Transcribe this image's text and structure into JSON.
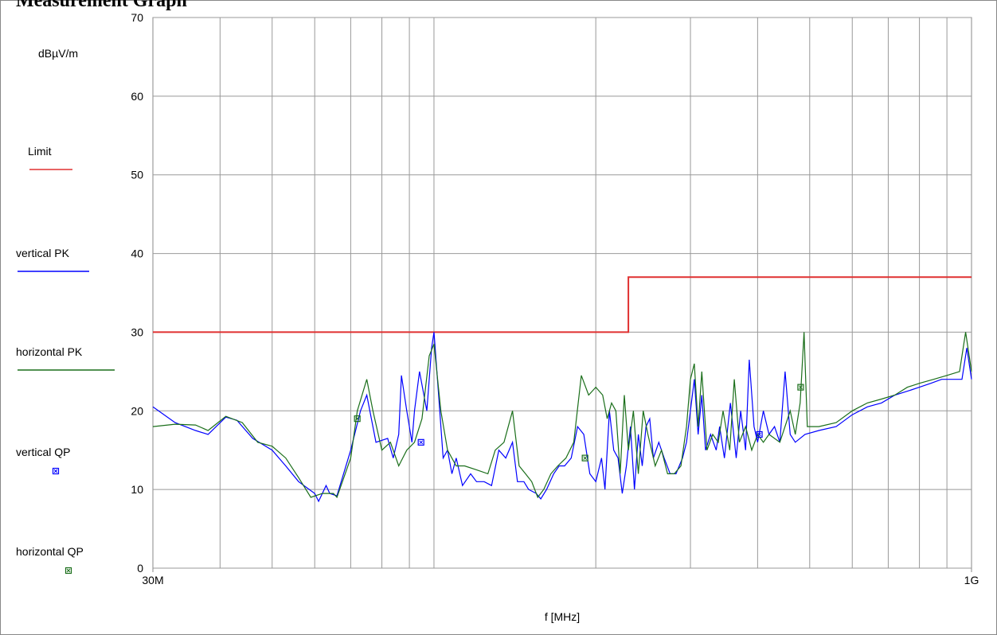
{
  "chart_data": {
    "type": "line",
    "title": "Measurement Graph",
    "ylabel": "dBµV/m",
    "xlabel": "f [MHz]",
    "xscale": "log",
    "xlim": [
      30,
      1000
    ],
    "ylim": [
      0,
      70
    ],
    "xticks": [
      {
        "value": 30,
        "label": "30M"
      },
      {
        "value": 1000,
        "label": "1G"
      }
    ],
    "xgrid": [
      40,
      50,
      60,
      70,
      80,
      90,
      100,
      200,
      300,
      400,
      500,
      600,
      700,
      800,
      900
    ],
    "yticks": [
      0,
      10,
      20,
      30,
      40,
      50,
      60,
      70
    ],
    "grid": true,
    "series": [
      {
        "name": "Limit",
        "color": "#e03030",
        "mark": "line",
        "x": [
          30,
          230,
          230,
          1000
        ],
        "values": [
          30,
          30,
          37,
          37
        ]
      },
      {
        "name": "vertical PK",
        "color": "#0000ff",
        "mark": "line",
        "x": [
          30,
          33,
          36,
          38,
          41,
          43,
          46,
          50,
          53,
          56,
          60,
          61,
          63,
          64,
          66,
          70,
          73,
          75,
          78,
          82,
          84,
          86,
          87,
          89,
          91,
          92,
          94,
          97,
          99,
          100,
          102,
          104,
          106,
          108,
          110,
          113,
          117,
          120,
          124,
          128,
          132,
          136,
          140,
          143,
          147,
          150,
          155,
          158,
          162,
          167,
          171,
          175,
          180,
          185,
          190,
          195,
          200,
          205,
          208,
          212,
          216,
          220,
          224,
          228,
          232,
          236,
          240,
          244,
          248,
          252,
          256,
          262,
          268,
          275,
          282,
          290,
          295,
          300,
          305,
          310,
          315,
          320,
          327,
          335,
          340,
          347,
          356,
          365,
          372,
          380,
          386,
          394,
          400,
          410,
          420,
          430,
          440,
          450,
          460,
          470,
          490,
          520,
          560,
          600,
          640,
          680,
          720,
          760,
          800,
          840,
          880,
          920,
          960,
          980,
          1000
        ],
        "values": [
          20.5,
          18.5,
          17.5,
          17,
          19.2,
          18.8,
          16.5,
          15,
          13,
          11,
          9.5,
          8.5,
          10.5,
          9.5,
          9.2,
          15,
          20,
          22,
          16,
          16.5,
          14,
          17,
          24.5,
          20,
          16,
          20,
          25,
          20,
          28,
          30,
          22,
          14,
          15,
          12,
          14,
          10.5,
          12,
          11,
          11,
          10.5,
          15,
          14,
          16,
          11,
          11,
          10,
          9.5,
          8.8,
          10,
          12,
          13,
          13,
          14,
          18,
          17,
          12,
          11,
          14,
          10,
          20,
          15,
          14,
          9.5,
          13,
          18,
          10,
          17,
          13,
          18,
          19,
          14,
          16,
          14,
          12,
          12,
          14,
          16,
          20,
          24,
          17,
          22,
          15,
          17,
          15,
          18,
          14,
          21,
          14,
          20,
          15,
          26.5,
          18,
          16,
          20,
          17,
          18,
          16,
          25,
          17,
          16,
          17,
          17.5,
          18,
          19.5,
          20.5,
          21,
          22,
          22.5,
          23,
          23.5,
          24,
          24,
          24,
          28,
          24
        ]
      },
      {
        "name": "horizontal PK",
        "color": "#1a6e1a",
        "mark": "line",
        "x": [
          30,
          33,
          36,
          38,
          41,
          44,
          47,
          50,
          53,
          56,
          59,
          62,
          65,
          66,
          70,
          72,
          75,
          77,
          80,
          83,
          86,
          89,
          92,
          95,
          98,
          100,
          103,
          106,
          110,
          114,
          120,
          126,
          130,
          135,
          140,
          144,
          148,
          152,
          156,
          160,
          165,
          170,
          176,
          182,
          188,
          194,
          200,
          206,
          210,
          214,
          218,
          222,
          226,
          230,
          235,
          240,
          245,
          250,
          258,
          265,
          272,
          280,
          288,
          295,
          300,
          305,
          310,
          315,
          322,
          330,
          338,
          345,
          355,
          362,
          370,
          380,
          390,
          400,
          410,
          420,
          440,
          460,
          470,
          480,
          488,
          495,
          520,
          560,
          600,
          640,
          680,
          720,
          760,
          800,
          850,
          900,
          950,
          975,
          1000
        ],
        "values": [
          18,
          18.3,
          18.2,
          17.5,
          19.3,
          18.5,
          16,
          15.5,
          14,
          11.5,
          9,
          9.5,
          9.5,
          9,
          14,
          20,
          24,
          20,
          15,
          16,
          13,
          15,
          16,
          19,
          27,
          28.5,
          20,
          15,
          13,
          13,
          12.5,
          12,
          15,
          16,
          20,
          13,
          12,
          11,
          9,
          10,
          12,
          13,
          14,
          16,
          24.5,
          22,
          23,
          22,
          19,
          21,
          20,
          12,
          22,
          15,
          20,
          12,
          20,
          17,
          13,
          15,
          12,
          12,
          13,
          18,
          24,
          26,
          18,
          25,
          15,
          17,
          16,
          20,
          15,
          24,
          16,
          18,
          15,
          17,
          16,
          17,
          16,
          20,
          17,
          21,
          30,
          18,
          18,
          18.5,
          20,
          21,
          21.5,
          22,
          23,
          23.5,
          24,
          24.5,
          25,
          30,
          25
        ]
      },
      {
        "name": "vertical QP",
        "color": "#0000ff",
        "mark": "marker",
        "x": [
          94.6,
          403
        ],
        "values": [
          16,
          17
        ]
      },
      {
        "name": "horizontal QP",
        "color": "#1a6e1a",
        "mark": "marker",
        "x": [
          72,
          191,
          481
        ],
        "values": [
          19,
          14,
          23
        ]
      }
    ]
  }
}
